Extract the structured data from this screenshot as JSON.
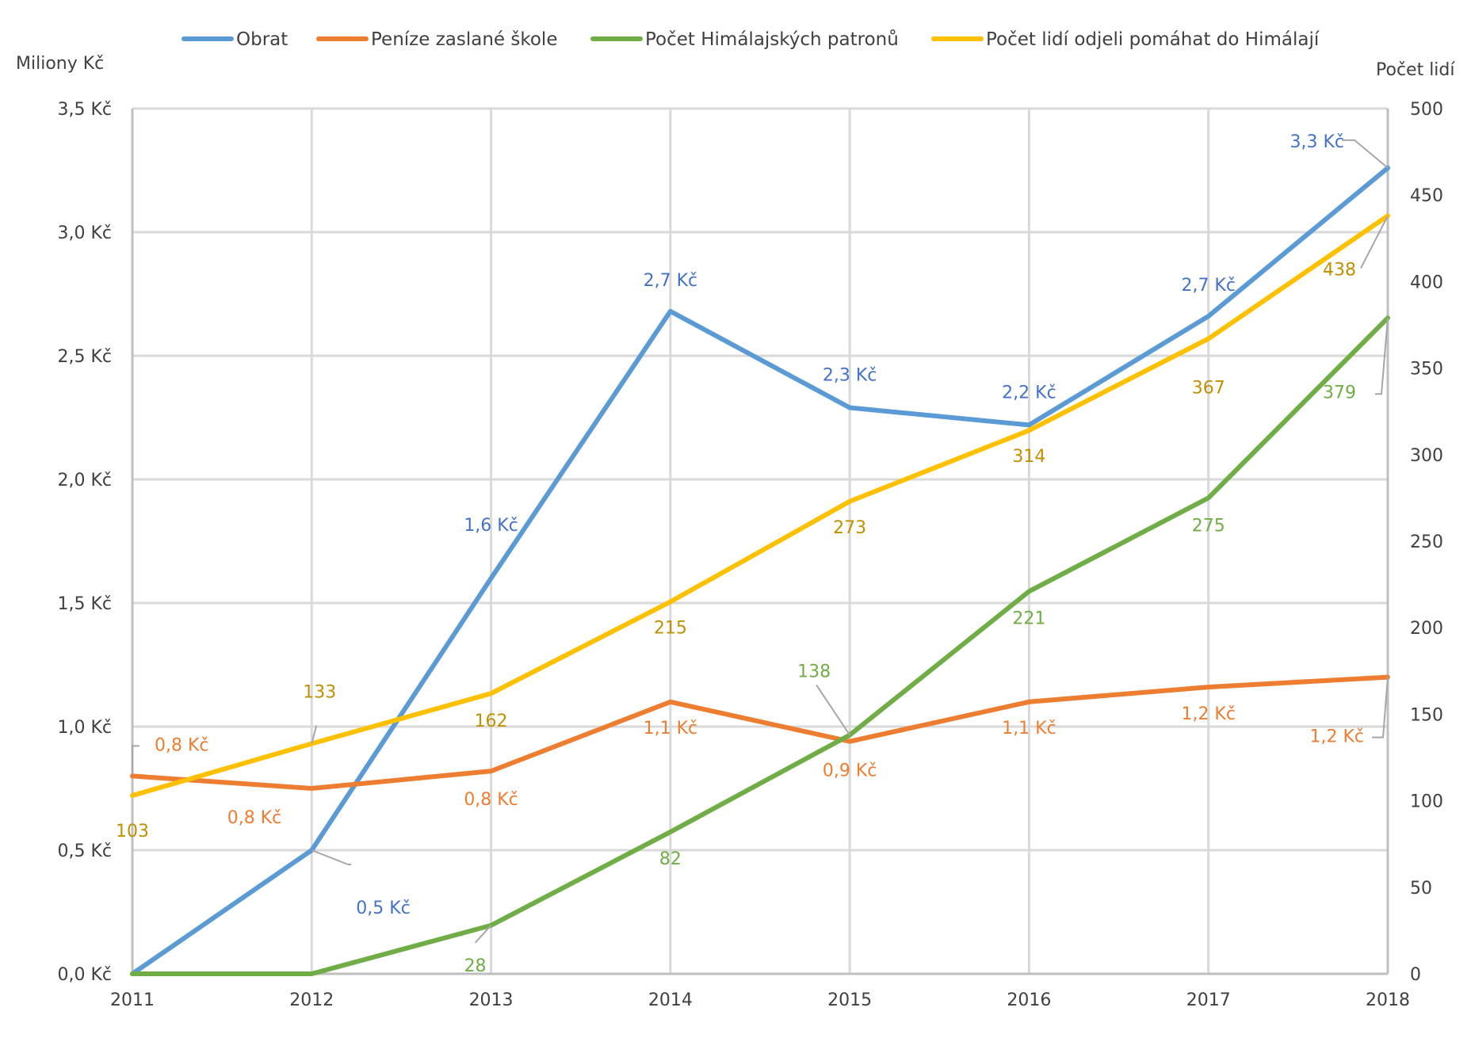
{
  "chart_data": {
    "type": "line",
    "title": "",
    "x": [
      "2011",
      "2012",
      "2013",
      "2014",
      "2015",
      "2016",
      "2017",
      "2018"
    ],
    "ylabel_left": "Miliony Kč",
    "ylabel_right": "Počet lidí",
    "ylim_left": [
      0,
      3.5
    ],
    "ylim_right": [
      0,
      500
    ],
    "yticks_left": [
      "0,0 Kč",
      "0,5 Kč",
      "1,0 Kč",
      "1,5 Kč",
      "2,0 Kč",
      "2,5 Kč",
      "3,0 Kč",
      "3,5 Kč"
    ],
    "yticks_right": [
      "0",
      "50",
      "100",
      "150",
      "200",
      "250",
      "300",
      "350",
      "400",
      "450",
      "500"
    ],
    "grid": true,
    "legend_position": "top",
    "series": [
      {
        "name": "Obrat",
        "axis": "left",
        "color": "#5b9bd5",
        "label_color": "#4472c4",
        "values": [
          0.0,
          0.5,
          1.6,
          2.68,
          2.29,
          2.22,
          2.66,
          3.26
        ],
        "labels": [
          "",
          "0,5 Kč",
          "1,6 Kč",
          "2,7 Kč",
          "2,3 Kč",
          "2,2 Kč",
          "2,7 Kč",
          "3,3 Kč"
        ]
      },
      {
        "name": "Peníze zaslané škole",
        "axis": "left",
        "color": "#ed7d31",
        "label_color": "#ed7d31",
        "values": [
          0.8,
          0.75,
          0.82,
          1.1,
          0.94,
          1.1,
          1.16,
          1.2
        ],
        "labels": [
          "0,8 Kč",
          "0,8 Kč",
          "0,8 Kč",
          "1,1 Kč",
          "0,9 Kč",
          "1,1 Kč",
          "1,2 Kč",
          "1,2 Kč"
        ]
      },
      {
        "name": "Počet Himálajských patronů",
        "axis": "right",
        "color": "#70ad47",
        "label_color": "#70ad47",
        "values": [
          0,
          0,
          28,
          82,
          138,
          221,
          275,
          379
        ],
        "labels": [
          "",
          "",
          "28",
          "82",
          "138",
          "221",
          "275",
          "379"
        ]
      },
      {
        "name": "Počet lidí odjeli pomáhat do Himálají",
        "axis": "right",
        "color": "#ffc000",
        "label_color": "#bf9000",
        "values": [
          103,
          133,
          162,
          215,
          273,
          314,
          367,
          438
        ],
        "labels": [
          "103",
          "133",
          "162",
          "215",
          "273",
          "314",
          "367",
          "438"
        ]
      }
    ]
  }
}
